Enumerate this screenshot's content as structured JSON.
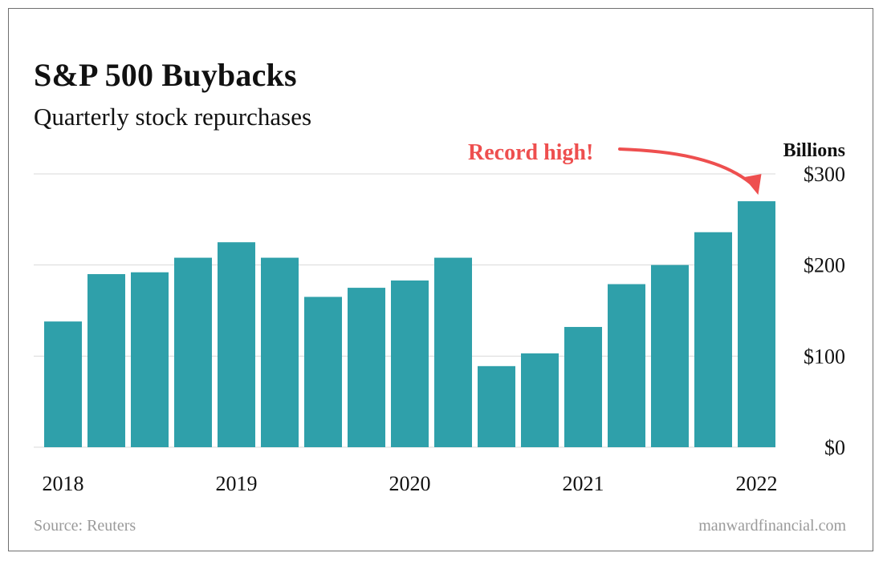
{
  "header": {
    "title": "S&P 500 Buybacks",
    "subtitle": "Quarterly stock repurchases"
  },
  "footer": {
    "source": "Source: Reuters",
    "brand": "manwardfinancial.com"
  },
  "colors": {
    "bar": "#2fa0aa",
    "annotation": "#ee4f4f",
    "grid": "#d9d9d9",
    "text": "#111111",
    "muted": "#9a9a9a"
  },
  "chart_data": {
    "type": "bar",
    "title": "S&P 500 Buybacks",
    "subtitle": "Quarterly stock repurchases",
    "unit_label": "Billions",
    "categories": [
      "Q1 2018",
      "Q2 2018",
      "Q3 2018",
      "Q4 2018",
      "Q1 2019",
      "Q2 2019",
      "Q3 2019",
      "Q4 2019",
      "Q1 2020",
      "Q2 2020",
      "Q3 2020",
      "Q4 2020",
      "Q1 2021",
      "Q2 2021",
      "Q3 2021",
      "Q4 2021",
      "Q1 2022"
    ],
    "values": [
      138,
      190,
      192,
      208,
      225,
      208,
      165,
      175,
      183,
      208,
      89,
      103,
      132,
      179,
      200,
      236,
      270
    ],
    "x_tick_labels": [
      {
        "label": "2018",
        "index": 0
      },
      {
        "label": "2019",
        "index": 4
      },
      {
        "label": "2020",
        "index": 8
      },
      {
        "label": "2021",
        "index": 12
      },
      {
        "label": "2022",
        "index": 16
      }
    ],
    "y_ticks": [
      {
        "value": 0,
        "label": "$0"
      },
      {
        "value": 100,
        "label": "$100"
      },
      {
        "value": 200,
        "label": "$200"
      },
      {
        "value": 300,
        "label": "$300"
      }
    ],
    "ylim": [
      0,
      300
    ],
    "grid": true,
    "annotation": {
      "text": "Record high!",
      "target_index": 16
    }
  }
}
